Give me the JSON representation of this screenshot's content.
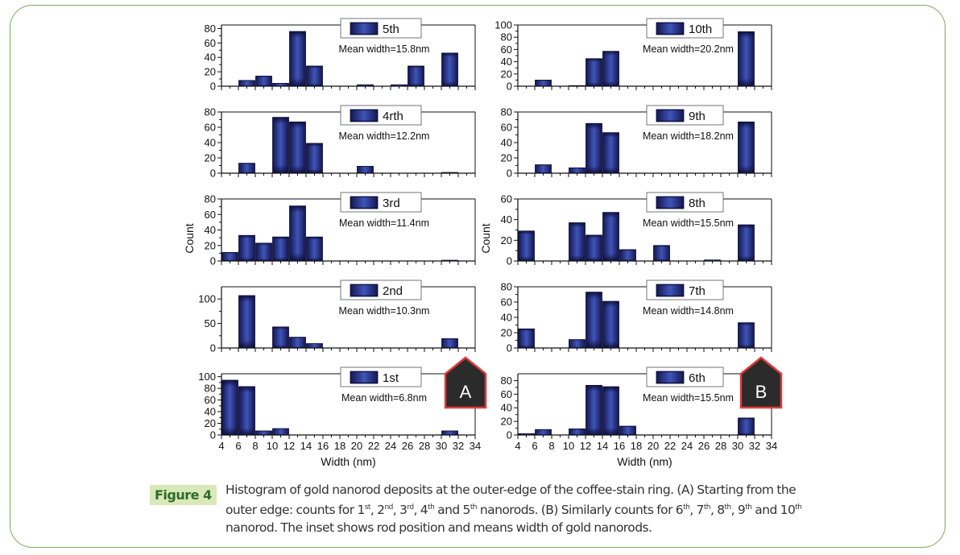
{
  "figure": {
    "label": "Figure 4",
    "caption_parts": [
      {
        "t": "Histogram of gold nanorod deposits at the outer-edge of the coffee-stain ring. (A) Starting from the outer edge: counts for 1"
      },
      {
        "sup": "st"
      },
      {
        "t": ", 2"
      },
      {
        "sup": "nd"
      },
      {
        "t": ", 3"
      },
      {
        "sup": "rd"
      },
      {
        "t": ", 4"
      },
      {
        "sup": "th"
      },
      {
        "t": " and 5"
      },
      {
        "sup": "th"
      },
      {
        "t": " nanorods. (B) Similarly counts for 6"
      },
      {
        "sup": "th"
      },
      {
        "t": ", 7"
      },
      {
        "sup": "th"
      },
      {
        "t": ", 8"
      },
      {
        "sup": "th"
      },
      {
        "t": ", 9"
      },
      {
        "sup": "th"
      },
      {
        "t": " and 10"
      },
      {
        "sup": "th"
      },
      {
        "t": " nanorod. The inset shows rod position and means width of gold nanorods."
      }
    ]
  },
  "colors": {
    "bar_dark": "#141650",
    "bar_light": "#3a4fb0",
    "badge_fill": "#2b2b2b",
    "badge_stroke": "#e03a3a",
    "frame": "#7aa95c"
  },
  "chart_data": [
    {
      "type": "bar",
      "column": "A",
      "panel_label": "5th",
      "annotation": "Mean width=15.8nm",
      "xlabel": "Width (nm)",
      "ylabel": "Count",
      "xlim": [
        4,
        34
      ],
      "ylim": [
        0,
        85
      ],
      "yticks": [
        0,
        20,
        40,
        60,
        80
      ],
      "bin_edges": [
        4,
        6,
        8,
        10,
        12,
        14,
        16,
        18,
        20,
        22,
        24,
        26,
        28,
        30,
        32
      ],
      "values": [
        0,
        8,
        14,
        4,
        76,
        28,
        0,
        0,
        2,
        0,
        2,
        28,
        0,
        46,
        0
      ]
    },
    {
      "type": "bar",
      "column": "A",
      "panel_label": "4rth",
      "annotation": "Mean width=12.2nm",
      "xlabel": "Width (nm)",
      "ylabel": "Count",
      "xlim": [
        4,
        34
      ],
      "ylim": [
        0,
        80
      ],
      "yticks": [
        0,
        20,
        40,
        60,
        80
      ],
      "bin_edges": [
        4,
        6,
        8,
        10,
        12,
        14,
        16,
        18,
        20,
        22,
        24,
        26,
        28,
        30,
        32
      ],
      "values": [
        0,
        13,
        0,
        73,
        67,
        39,
        0,
        0,
        9,
        0,
        0,
        0,
        0,
        1,
        0
      ]
    },
    {
      "type": "bar",
      "column": "A",
      "panel_label": "3rd",
      "annotation": "Mean width=11.4nm",
      "xlabel": "Width (nm)",
      "ylabel": "Count",
      "xlim": [
        4,
        34
      ],
      "ylim": [
        0,
        80
      ],
      "yticks": [
        0,
        20,
        40,
        60,
        80
      ],
      "bin_edges": [
        4,
        6,
        8,
        10,
        12,
        14,
        16,
        18,
        20,
        22,
        24,
        26,
        28,
        30,
        32
      ],
      "values": [
        11,
        33,
        23,
        31,
        71,
        31,
        0,
        0,
        0,
        0,
        0,
        0,
        0,
        1,
        0
      ]
    },
    {
      "type": "bar",
      "column": "A",
      "panel_label": "2nd",
      "annotation": "Mean width=10.3nm",
      "xlabel": "Width (nm)",
      "ylabel": "Count",
      "xlim": [
        4,
        34
      ],
      "ylim": [
        0,
        125
      ],
      "yticks": [
        0,
        50,
        100
      ],
      "bin_edges": [
        4,
        6,
        8,
        10,
        12,
        14,
        16,
        18,
        20,
        22,
        24,
        26,
        28,
        30,
        32
      ],
      "values": [
        0,
        107,
        0,
        43,
        22,
        9,
        0,
        0,
        0,
        0,
        0,
        0,
        0,
        19,
        0
      ]
    },
    {
      "type": "bar",
      "column": "A",
      "panel_label": "1st",
      "annotation": "Mean width=6.8nm",
      "xlabel": "Width (nm)",
      "ylabel": "Count",
      "xlim": [
        4,
        34
      ],
      "ylim": [
        0,
        105
      ],
      "yticks": [
        0,
        20,
        40,
        60,
        80,
        100
      ],
      "xticks": [
        4,
        6,
        8,
        10,
        12,
        14,
        16,
        18,
        20,
        22,
        24,
        26,
        28,
        30,
        32,
        34
      ],
      "bin_edges": [
        4,
        6,
        8,
        10,
        12,
        14,
        16,
        18,
        20,
        22,
        24,
        26,
        28,
        30,
        32
      ],
      "values": [
        94,
        83,
        7,
        11,
        0,
        0,
        0,
        0,
        0,
        0,
        0,
        0,
        0,
        7,
        0
      ]
    },
    {
      "type": "bar",
      "column": "B",
      "panel_label": "10th",
      "annotation": "Mean width=20.2nm",
      "xlabel": "Width (nm)",
      "ylabel": "Count",
      "xlim": [
        4,
        34
      ],
      "ylim": [
        0,
        100
      ],
      "yticks": [
        0,
        20,
        40,
        60,
        80,
        100
      ],
      "bin_edges": [
        4,
        6,
        8,
        10,
        12,
        14,
        16,
        18,
        20,
        22,
        24,
        26,
        28,
        30,
        32
      ],
      "values": [
        0,
        10,
        0,
        1,
        45,
        57,
        0,
        0,
        0,
        0,
        0,
        0,
        0,
        89,
        0
      ]
    },
    {
      "type": "bar",
      "column": "B",
      "panel_label": "9th",
      "annotation": "Mean width=18.2nm",
      "xlabel": "Width (nm)",
      "ylabel": "Count",
      "xlim": [
        4,
        34
      ],
      "ylim": [
        0,
        80
      ],
      "yticks": [
        0,
        20,
        40,
        60,
        80
      ],
      "bin_edges": [
        4,
        6,
        8,
        10,
        12,
        14,
        16,
        18,
        20,
        22,
        24,
        26,
        28,
        30,
        32
      ],
      "values": [
        0,
        11,
        0,
        7,
        65,
        53,
        0,
        0,
        0,
        0,
        0,
        0,
        0,
        67,
        0
      ]
    },
    {
      "type": "bar",
      "column": "B",
      "panel_label": "8th",
      "annotation": "Mean width=15.5nm",
      "xlabel": "Width (nm)",
      "ylabel": "Count",
      "xlim": [
        4,
        34
      ],
      "ylim": [
        0,
        60
      ],
      "yticks": [
        0,
        20,
        40,
        60
      ],
      "bin_edges": [
        4,
        6,
        8,
        10,
        12,
        14,
        16,
        18,
        20,
        22,
        24,
        26,
        28,
        30,
        32
      ],
      "values": [
        29,
        0,
        0,
        37,
        25,
        47,
        11,
        0,
        15,
        0,
        0,
        1,
        0,
        35,
        0
      ]
    },
    {
      "type": "bar",
      "column": "B",
      "panel_label": "7th",
      "annotation": "Mean width=14.8nm",
      "xlabel": "Width (nm)",
      "ylabel": "Count",
      "xlim": [
        4,
        34
      ],
      "ylim": [
        0,
        80
      ],
      "yticks": [
        0,
        20,
        40,
        60,
        80
      ],
      "bin_edges": [
        4,
        6,
        8,
        10,
        12,
        14,
        16,
        18,
        20,
        22,
        24,
        26,
        28,
        30,
        32
      ],
      "values": [
        25,
        0,
        0,
        11,
        73,
        61,
        0,
        0,
        0,
        0,
        0,
        0,
        0,
        33,
        0
      ]
    },
    {
      "type": "bar",
      "column": "B",
      "panel_label": "6th",
      "annotation": "Mean width=15.5nm",
      "xlabel": "Width (nm)",
      "ylabel": "Count",
      "xlim": [
        4,
        34
      ],
      "ylim": [
        0,
        90
      ],
      "yticks": [
        0,
        20,
        40,
        60,
        80
      ],
      "xticks": [
        4,
        6,
        8,
        10,
        12,
        14,
        16,
        18,
        20,
        22,
        24,
        26,
        28,
        30,
        32,
        34
      ],
      "bin_edges": [
        4,
        6,
        8,
        10,
        12,
        14,
        16,
        18,
        20,
        22,
        24,
        26,
        28,
        30,
        32
      ],
      "values": [
        2,
        8,
        0,
        9,
        73,
        71,
        13,
        0,
        0,
        0,
        0,
        0,
        0,
        25,
        0
      ]
    }
  ],
  "column_meta": {
    "A": {
      "badge": "A",
      "xlabel": "Width (nm)",
      "ylabel": "Count"
    },
    "B": {
      "badge": "B",
      "xlabel": "Width (nm)",
      "ylabel": "Count"
    }
  }
}
